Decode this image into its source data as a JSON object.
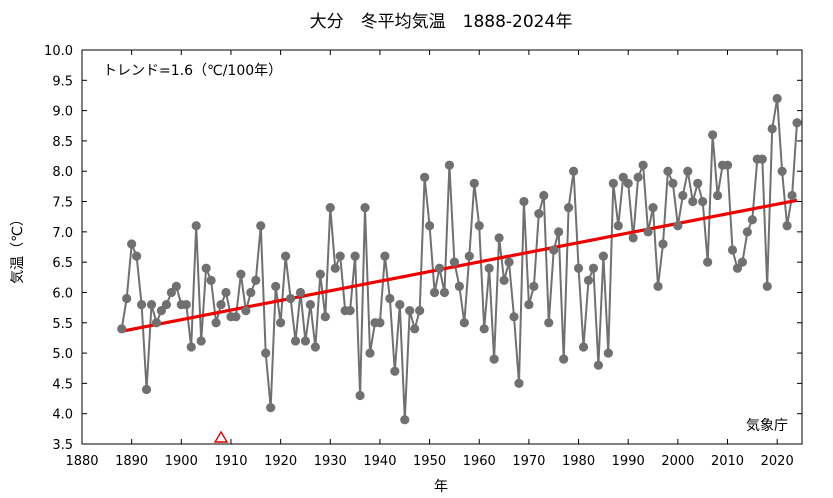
{
  "chart_data": {
    "type": "line",
    "title": "大分　冬平均気温　1888-2024年",
    "xlabel": "年",
    "ylabel": "気温（℃）",
    "xlim": [
      1880,
      2025
    ],
    "ylim": [
      3.5,
      10.0
    ],
    "xticks": [
      1880,
      1890,
      1900,
      1910,
      1920,
      1930,
      1940,
      1950,
      1960,
      1970,
      1980,
      1990,
      2000,
      2010,
      2020
    ],
    "yticks": [
      "3.5",
      "4.0",
      "4.5",
      "5.0",
      "5.5",
      "6.0",
      "6.5",
      "7.0",
      "7.5",
      "8.0",
      "8.5",
      "9.0",
      "9.5",
      "10.0"
    ],
    "grid": false,
    "annotation": "トレンド=1.6（℃/100年）",
    "source": "気象庁",
    "marker_year": 1908,
    "series": [
      {
        "color": "#707070",
        "x": [
          1888,
          1889,
          1890,
          1891,
          1892,
          1893,
          1894,
          1895,
          1896,
          1897,
          1898,
          1899,
          1900,
          1901,
          1902,
          1903,
          1904,
          1905,
          1906,
          1907,
          1908,
          1909,
          1910,
          1911,
          1912,
          1913,
          1914,
          1915,
          1916,
          1917,
          1918,
          1919,
          1920,
          1921,
          1922,
          1923,
          1924,
          1925,
          1926,
          1927,
          1928,
          1929,
          1930,
          1931,
          1932,
          1933,
          1934,
          1935,
          1936,
          1937,
          1938,
          1939,
          1940,
          1941,
          1942,
          1943,
          1944,
          1945,
          1946,
          1947,
          1948,
          1949,
          1950,
          1951,
          1952,
          1953,
          1954,
          1955,
          1956,
          1957,
          1958,
          1959,
          1960,
          1961,
          1962,
          1963,
          1964,
          1965,
          1966,
          1967,
          1968,
          1969,
          1970,
          1971,
          1972,
          1973,
          1974,
          1975,
          1976,
          1977,
          1978,
          1979,
          1980,
          1981,
          1982,
          1983,
          1984,
          1985,
          1986,
          1987,
          1988,
          1989,
          1990,
          1991,
          1992,
          1993,
          1994,
          1995,
          1996,
          1997,
          1998,
          1999,
          2000,
          2001,
          2002,
          2003,
          2004,
          2005,
          2006,
          2007,
          2008,
          2009,
          2010,
          2011,
          2012,
          2013,
          2014,
          2015,
          2016,
          2017,
          2018,
          2019,
          2020,
          2021,
          2022,
          2023,
          2024
        ],
        "y": [
          5.4,
          5.9,
          6.8,
          6.6,
          5.8,
          4.4,
          5.8,
          5.5,
          5.7,
          5.8,
          6.0,
          6.1,
          5.8,
          5.8,
          5.1,
          7.1,
          5.2,
          6.4,
          6.2,
          5.5,
          5.8,
          6.0,
          5.6,
          5.6,
          6.3,
          5.7,
          6.0,
          6.2,
          7.1,
          5.0,
          4.1,
          6.1,
          5.5,
          6.6,
          5.9,
          5.2,
          6.0,
          5.2,
          5.8,
          5.1,
          6.3,
          5.6,
          7.4,
          6.4,
          6.6,
          5.7,
          5.7,
          6.6,
          4.3,
          7.4,
          5.0,
          5.5,
          5.5,
          6.6,
          5.9,
          4.7,
          5.8,
          3.9,
          5.7,
          5.4,
          5.7,
          7.9,
          7.1,
          6.0,
          6.4,
          6.0,
          8.1,
          6.5,
          6.1,
          5.5,
          6.6,
          7.8,
          7.1,
          5.4,
          6.4,
          4.9,
          6.9,
          6.2,
          6.5,
          5.6,
          4.5,
          7.5,
          5.8,
          6.1,
          7.3,
          7.6,
          5.5,
          6.7,
          7.0,
          4.9,
          7.4,
          8.0,
          6.4,
          5.1,
          6.2,
          6.4,
          4.8,
          6.6,
          5.0,
          7.8,
          7.1,
          7.9,
          7.8,
          6.9,
          7.9,
          8.1,
          7.0,
          7.4,
          6.1,
          6.8,
          8.0,
          7.8,
          7.1,
          7.6,
          8.0,
          7.5,
          7.8,
          7.5,
          6.5,
          8.6,
          7.6,
          8.1,
          8.1,
          6.7,
          6.4,
          6.5,
          7.0,
          7.2,
          8.2,
          8.2,
          6.1,
          8.7,
          9.2,
          8.0,
          7.1,
          7.6,
          8.8
        ]
      },
      {
        "color": "#ee0000",
        "x": [
          1888,
          2024
        ],
        "y": [
          5.36,
          7.52
        ]
      }
    ]
  }
}
